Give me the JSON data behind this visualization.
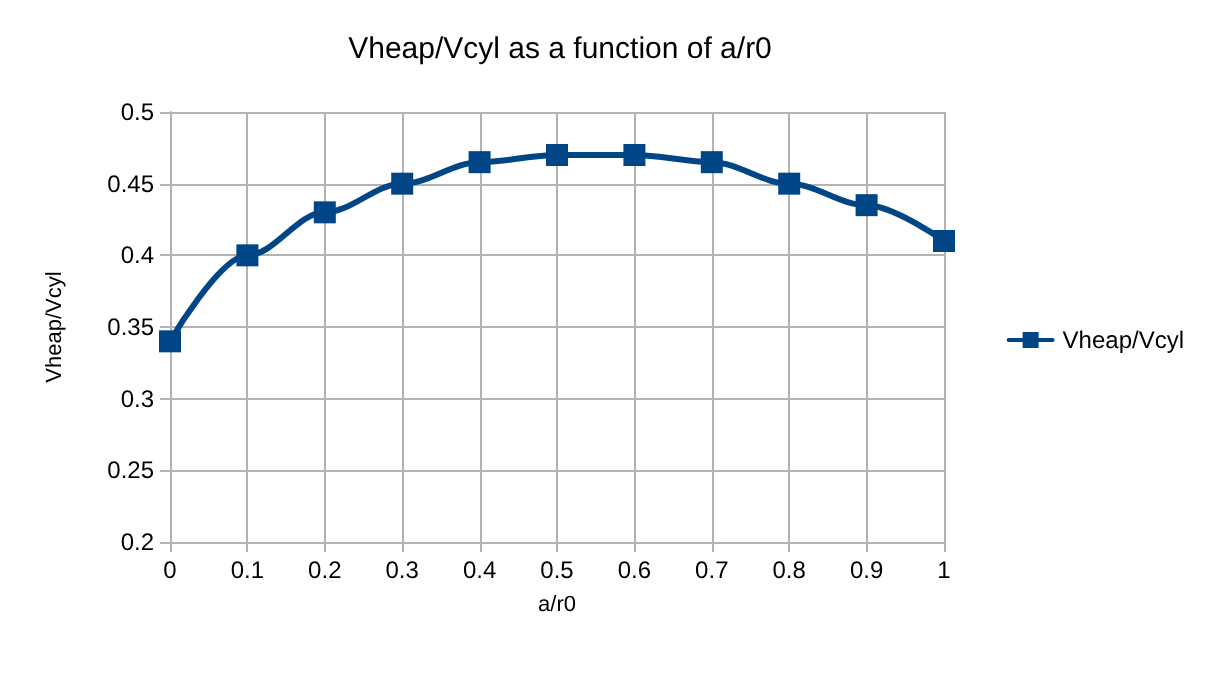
{
  "chart_data": {
    "type": "line",
    "title": "Vheap/Vcyl as a function of a/r0",
    "xlabel": "a/r0",
    "ylabel": "Vheap/Vcyl",
    "x": [
      0,
      0.1,
      0.2,
      0.3,
      0.4,
      0.5,
      0.6,
      0.7,
      0.8,
      0.9,
      1
    ],
    "series": [
      {
        "name": "Vheap/Vcyl",
        "color": "#004586",
        "values": [
          0.34,
          0.4,
          0.43,
          0.45,
          0.465,
          0.47,
          0.47,
          0.465,
          0.45,
          0.435,
          0.41
        ]
      }
    ],
    "xlim": [
      0,
      1
    ],
    "xticks": [
      0,
      0.1,
      0.2,
      0.3,
      0.4,
      0.5,
      0.6,
      0.7,
      0.8,
      0.9,
      1
    ],
    "ylim": [
      0.2,
      0.5
    ],
    "yticks": [
      0.2,
      0.25,
      0.3,
      0.35,
      0.4,
      0.45,
      0.5
    ],
    "grid": true,
    "legend": "right",
    "marker": "square",
    "line_style": "solid"
  }
}
